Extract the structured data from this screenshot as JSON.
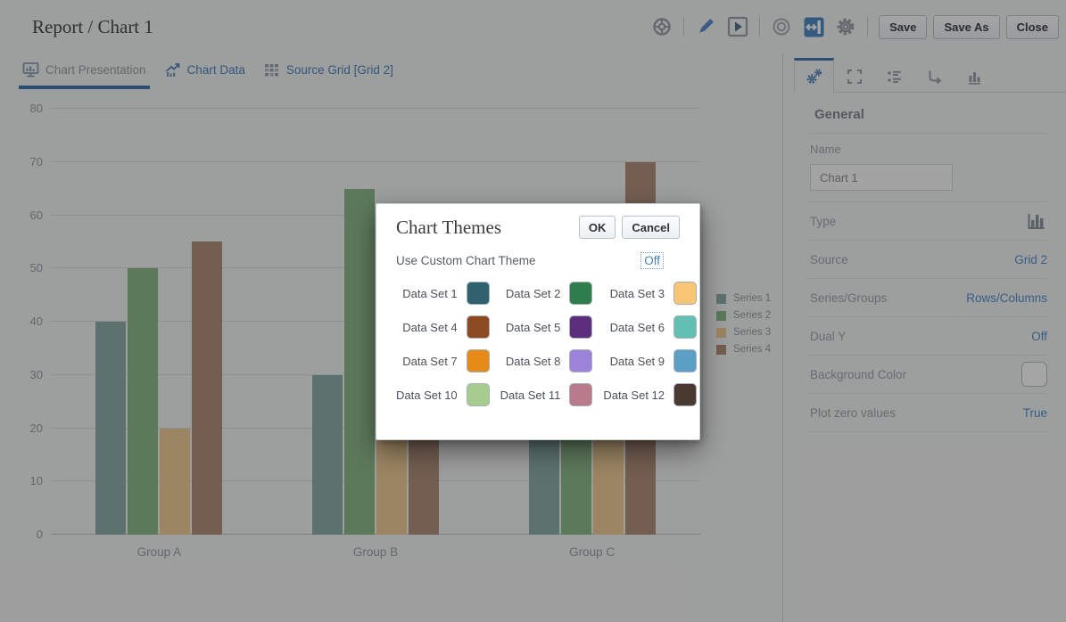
{
  "header": {
    "title": "Report / Chart 1"
  },
  "toolbar": {
    "icons": [
      {
        "name": "wheel-icon"
      },
      {
        "name": "edit-pencil-icon"
      },
      {
        "name": "preview-play-icon"
      },
      {
        "name": "record-icon"
      },
      {
        "name": "toggle-sidebar-icon"
      },
      {
        "name": "settings-gear-icon"
      }
    ],
    "buttons": [
      {
        "label": "Save"
      },
      {
        "label": "Save As"
      },
      {
        "label": "Close"
      }
    ]
  },
  "main_tabs": [
    {
      "label": "Chart Presentation",
      "icon": "chart-presentation-icon",
      "active": true
    },
    {
      "label": "Chart Data",
      "icon": "chart-data-icon",
      "active": false
    },
    {
      "label": "Source Grid [Grid 2]",
      "icon": "source-grid-icon",
      "active": false
    }
  ],
  "chart_data": {
    "type": "bar",
    "categories": [
      "Group A",
      "Group B",
      "Group C"
    ],
    "series": [
      {
        "name": "Series 1",
        "color": "#8fafa9",
        "values": [
          40,
          30,
          35
        ]
      },
      {
        "name": "Series 2",
        "color": "#8fba8e",
        "values": [
          50,
          65,
          45
        ]
      },
      {
        "name": "Series 3",
        "color": "#eecd97",
        "values": [
          20,
          20,
          25
        ]
      },
      {
        "name": "Series 4",
        "color": "#b1917d",
        "values": [
          55,
          40,
          70
        ]
      }
    ],
    "ylim": [
      0,
      80
    ],
    "yticks": [
      0,
      10,
      20,
      30,
      40,
      50,
      60,
      70,
      80
    ],
    "grid": true,
    "legend_position": "right"
  },
  "modal": {
    "title": "Chart Themes",
    "ok_label": "OK",
    "cancel_label": "Cancel",
    "custom_theme_label": "Use Custom Chart Theme",
    "custom_theme_value": "Off",
    "datasets": [
      {
        "label": "Data Set 1",
        "color": "#30616e"
      },
      {
        "label": "Data Set 2",
        "color": "#2e7d4c"
      },
      {
        "label": "Data Set 3",
        "color": "#f7c673"
      },
      {
        "label": "Data Set 4",
        "color": "#8b4a20"
      },
      {
        "label": "Data Set 5",
        "color": "#5d2e7e"
      },
      {
        "label": "Data Set 6",
        "color": "#64bfb3"
      },
      {
        "label": "Data Set 7",
        "color": "#e68b18"
      },
      {
        "label": "Data Set 8",
        "color": "#9c82d8"
      },
      {
        "label": "Data Set 9",
        "color": "#5b9fc4"
      },
      {
        "label": "Data Set 10",
        "color": "#a6cd8f"
      },
      {
        "label": "Data Set 11",
        "color": "#b97b8c"
      },
      {
        "label": "Data Set 12",
        "color": "#4a392e"
      }
    ]
  },
  "sidebar": {
    "tabs": [
      {
        "icon": "gears-icon",
        "active": true
      },
      {
        "icon": "selection-brackets-icon",
        "active": false
      },
      {
        "icon": "list-icon",
        "active": false
      },
      {
        "icon": "axis-arrow-icon",
        "active": false
      },
      {
        "icon": "bar-chart-icon",
        "active": false
      }
    ],
    "section_title": "General",
    "name_field": {
      "label": "Name",
      "value": "Chart 1"
    },
    "fields": [
      {
        "label": "Type",
        "value_type": "icon",
        "value": "bar-chart-type-icon"
      },
      {
        "label": "Source",
        "value_type": "link",
        "value": "Grid 2"
      },
      {
        "label": "Series/Groups",
        "value_type": "link",
        "value": "Rows/Columns"
      },
      {
        "label": "Dual Y",
        "value_type": "link",
        "value": "Off"
      },
      {
        "label": "Background Color",
        "value_type": "swatch",
        "value": ""
      },
      {
        "label": "Plot zero values",
        "value_type": "link",
        "value": "True"
      }
    ]
  },
  "colors": {
    "accent_blue": "#4377ad",
    "link_blue": "#5a8fcc",
    "icon_blue": "#4c86bd",
    "icon_gray": "#9aa1a8",
    "backdrop": "rgba(0,0,0,0.35)"
  }
}
